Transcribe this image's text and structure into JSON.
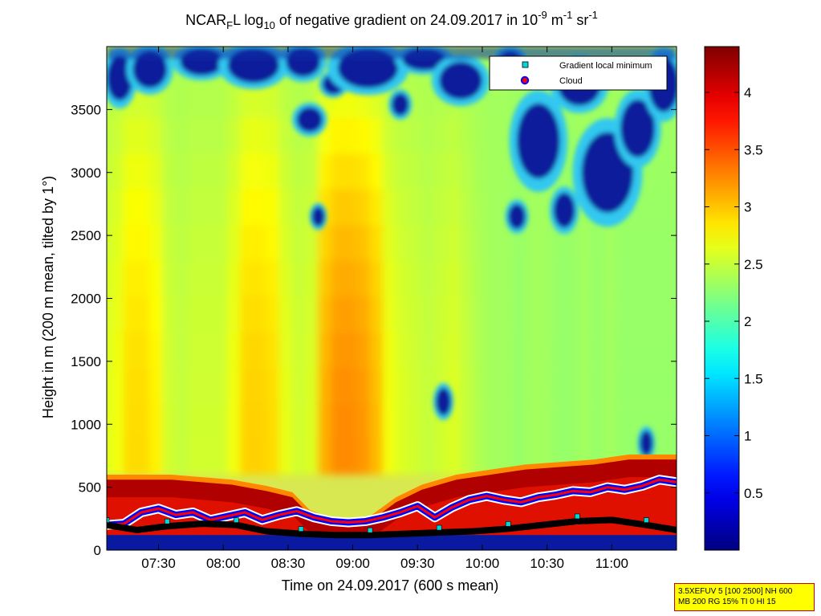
{
  "title": {
    "prefix": "NCAR",
    "sub1": "F",
    "mid1": "L log",
    "sub2": "10",
    "mid2": " of negative gradient on 24.09.2017 in 10",
    "sup1": "-9",
    "mid3": " m",
    "sup2": "-1",
    "mid4": " sr",
    "sup3": "-1"
  },
  "chart_data": {
    "type": "heatmap",
    "xlabel": "Time on 24.09.2017 (600 s mean)",
    "ylabel": "Height in m (200 m mean, tilted by 1°)",
    "x_ticks": [
      "07:30",
      "08:00",
      "08:30",
      "09:00",
      "09:30",
      "10:00",
      "10:30",
      "11:00"
    ],
    "x_tick_minutes": [
      450,
      480,
      510,
      540,
      570,
      600,
      630,
      660
    ],
    "xlim_minutes": [
      426,
      690
    ],
    "y_ticks": [
      0,
      500,
      1000,
      1500,
      2000,
      2500,
      3000,
      3500
    ],
    "ylim": [
      0,
      4000
    ],
    "colorbar": {
      "ticks": [
        0.5,
        1,
        1.5,
        2,
        2.5,
        3,
        3.5,
        4
      ],
      "tick_labels": [
        "0.5",
        "1",
        "1.5",
        "2",
        "2.5",
        "3",
        "3.5",
        "4"
      ],
      "range": [
        0,
        4.4
      ],
      "colormap": "jet"
    },
    "legend": {
      "placement": "top-right",
      "entries": [
        {
          "label": "Gradient local minimum",
          "marker": "square",
          "color": "#00d8d8"
        },
        {
          "label": "Cloud",
          "marker": "circle",
          "color": "#ff0000",
          "edge": "#0000ff"
        }
      ]
    },
    "columns": [
      {
        "t": 426,
        "v": 2.6
      },
      {
        "t": 432,
        "v": 2.7
      },
      {
        "t": 438,
        "v": 2.9
      },
      {
        "t": 444,
        "v": 2.9
      },
      {
        "t": 450,
        "v": 2.8
      },
      {
        "t": 456,
        "v": 2.55
      },
      {
        "t": 462,
        "v": 2.5
      },
      {
        "t": 468,
        "v": 2.55
      },
      {
        "t": 474,
        "v": 2.55
      },
      {
        "t": 480,
        "v": 2.55
      },
      {
        "t": 486,
        "v": 2.7
      },
      {
        "t": 492,
        "v": 2.95
      },
      {
        "t": 498,
        "v": 2.95
      },
      {
        "t": 504,
        "v": 2.9
      },
      {
        "t": 510,
        "v": 2.65
      },
      {
        "t": 516,
        "v": 2.55
      },
      {
        "t": 522,
        "v": 2.6
      },
      {
        "t": 528,
        "v": 3.1
      },
      {
        "t": 534,
        "v": 3.25
      },
      {
        "t": 540,
        "v": 3.25
      },
      {
        "t": 546,
        "v": 3.2
      },
      {
        "t": 552,
        "v": 3.05
      },
      {
        "t": 558,
        "v": 2.7
      },
      {
        "t": 564,
        "v": 2.6
      },
      {
        "t": 570,
        "v": 2.55
      },
      {
        "t": 576,
        "v": 2.5
      },
      {
        "t": 582,
        "v": 2.55
      },
      {
        "t": 588,
        "v": 2.6
      },
      {
        "t": 594,
        "v": 2.5
      },
      {
        "t": 600,
        "v": 2.4
      },
      {
        "t": 606,
        "v": 2.35
      },
      {
        "t": 612,
        "v": 2.35
      },
      {
        "t": 618,
        "v": 2.3
      },
      {
        "t": 624,
        "v": 2.35
      },
      {
        "t": 630,
        "v": 2.35
      },
      {
        "t": 636,
        "v": 2.3
      },
      {
        "t": 642,
        "v": 2.3
      },
      {
        "t": 648,
        "v": 2.35
      },
      {
        "t": 654,
        "v": 2.3
      },
      {
        "t": 660,
        "v": 2.35
      },
      {
        "t": 666,
        "v": 2.3
      },
      {
        "t": 672,
        "v": 2.3
      },
      {
        "t": 678,
        "v": 2.3
      },
      {
        "t": 684,
        "v": 2.3
      },
      {
        "t": 690,
        "v": 2.3
      }
    ],
    "low_value_blobs": [
      {
        "t": 432,
        "h": 3750,
        "rt": 6,
        "rh": 180
      },
      {
        "t": 446,
        "h": 3820,
        "rt": 8,
        "rh": 150
      },
      {
        "t": 470,
        "h": 3880,
        "rt": 10,
        "rh": 110
      },
      {
        "t": 494,
        "h": 3850,
        "rt": 12,
        "rh": 140
      },
      {
        "t": 517,
        "h": 3880,
        "rt": 8,
        "rh": 120
      },
      {
        "t": 520,
        "h": 3420,
        "rt": 6,
        "rh": 100
      },
      {
        "t": 531,
        "h": 3700,
        "rt": 5,
        "rh": 80
      },
      {
        "t": 547,
        "h": 3830,
        "rt": 14,
        "rh": 160
      },
      {
        "t": 573,
        "h": 3900,
        "rt": 10,
        "rh": 90
      },
      {
        "t": 562,
        "h": 3540,
        "rt": 4,
        "rh": 90
      },
      {
        "t": 590,
        "h": 3730,
        "rt": 10,
        "rh": 150
      },
      {
        "t": 613,
        "h": 3850,
        "rt": 6,
        "rh": 120
      },
      {
        "t": 626,
        "h": 3250,
        "rt": 10,
        "rh": 300
      },
      {
        "t": 645,
        "h": 3700,
        "rt": 10,
        "rh": 170
      },
      {
        "t": 658,
        "h": 3000,
        "rt": 12,
        "rh": 320
      },
      {
        "t": 672,
        "h": 3350,
        "rt": 8,
        "rh": 230
      },
      {
        "t": 684,
        "h": 3700,
        "rt": 7,
        "rh": 220
      },
      {
        "t": 616,
        "h": 2650,
        "rt": 4,
        "rh": 100
      },
      {
        "t": 638,
        "h": 2700,
        "rt": 5,
        "rh": 140
      },
      {
        "t": 524,
        "h": 2650,
        "rt": 3,
        "rh": 80
      },
      {
        "t": 582,
        "h": 1180,
        "rt": 3.5,
        "rh": 110
      },
      {
        "t": 676,
        "h": 850,
        "rt": 3,
        "rh": 100
      }
    ],
    "high_layer_top": [
      {
        "t": 426,
        "h": 560
      },
      {
        "t": 440,
        "h": 560
      },
      {
        "t": 456,
        "h": 560
      },
      {
        "t": 470,
        "h": 540
      },
      {
        "t": 484,
        "h": 520
      },
      {
        "t": 500,
        "h": 470
      },
      {
        "t": 512,
        "h": 420
      },
      {
        "t": 520,
        "h": 280
      },
      {
        "t": 532,
        "h": 200
      },
      {
        "t": 548,
        "h": 230
      },
      {
        "t": 560,
        "h": 380
      },
      {
        "t": 572,
        "h": 480
      },
      {
        "t": 588,
        "h": 560
      },
      {
        "t": 604,
        "h": 600
      },
      {
        "t": 620,
        "h": 640
      },
      {
        "t": 636,
        "h": 660
      },
      {
        "t": 652,
        "h": 680
      },
      {
        "t": 668,
        "h": 720
      },
      {
        "t": 690,
        "h": 720
      }
    ],
    "cloud_line": [
      {
        "t": 426,
        "h": 200
      },
      {
        "t": 434,
        "h": 210
      },
      {
        "t": 442,
        "h": 300
      },
      {
        "t": 450,
        "h": 330
      },
      {
        "t": 458,
        "h": 280
      },
      {
        "t": 466,
        "h": 300
      },
      {
        "t": 474,
        "h": 240
      },
      {
        "t": 482,
        "h": 270
      },
      {
        "t": 490,
        "h": 300
      },
      {
        "t": 498,
        "h": 240
      },
      {
        "t": 506,
        "h": 280
      },
      {
        "t": 514,
        "h": 310
      },
      {
        "t": 522,
        "h": 260
      },
      {
        "t": 530,
        "h": 230
      },
      {
        "t": 538,
        "h": 220
      },
      {
        "t": 546,
        "h": 230
      },
      {
        "t": 554,
        "h": 260
      },
      {
        "t": 562,
        "h": 300
      },
      {
        "t": 570,
        "h": 350
      },
      {
        "t": 578,
        "h": 260
      },
      {
        "t": 586,
        "h": 340
      },
      {
        "t": 594,
        "h": 400
      },
      {
        "t": 602,
        "h": 430
      },
      {
        "t": 610,
        "h": 400
      },
      {
        "t": 618,
        "h": 380
      },
      {
        "t": 626,
        "h": 420
      },
      {
        "t": 634,
        "h": 440
      },
      {
        "t": 642,
        "h": 470
      },
      {
        "t": 650,
        "h": 460
      },
      {
        "t": 658,
        "h": 500
      },
      {
        "t": 666,
        "h": 480
      },
      {
        "t": 674,
        "h": 510
      },
      {
        "t": 682,
        "h": 560
      },
      {
        "t": 690,
        "h": 540
      }
    ],
    "min_line": [
      {
        "t": 426,
        "h": 200
      },
      {
        "t": 440,
        "h": 160
      },
      {
        "t": 454,
        "h": 190
      },
      {
        "t": 470,
        "h": 210
      },
      {
        "t": 486,
        "h": 200
      },
      {
        "t": 500,
        "h": 150
      },
      {
        "t": 516,
        "h": 130
      },
      {
        "t": 532,
        "h": 120
      },
      {
        "t": 548,
        "h": 120
      },
      {
        "t": 564,
        "h": 130
      },
      {
        "t": 580,
        "h": 140
      },
      {
        "t": 596,
        "h": 150
      },
      {
        "t": 612,
        "h": 170
      },
      {
        "t": 628,
        "h": 200
      },
      {
        "t": 644,
        "h": 230
      },
      {
        "t": 660,
        "h": 240
      },
      {
        "t": 676,
        "h": 200
      },
      {
        "t": 690,
        "h": 160
      }
    ]
  },
  "info_box": {
    "line1": "3.5XEFUV 5 [100 2500] NH 600",
    "line2": "MB 200 RG 15% TI 0 HI 15"
  }
}
